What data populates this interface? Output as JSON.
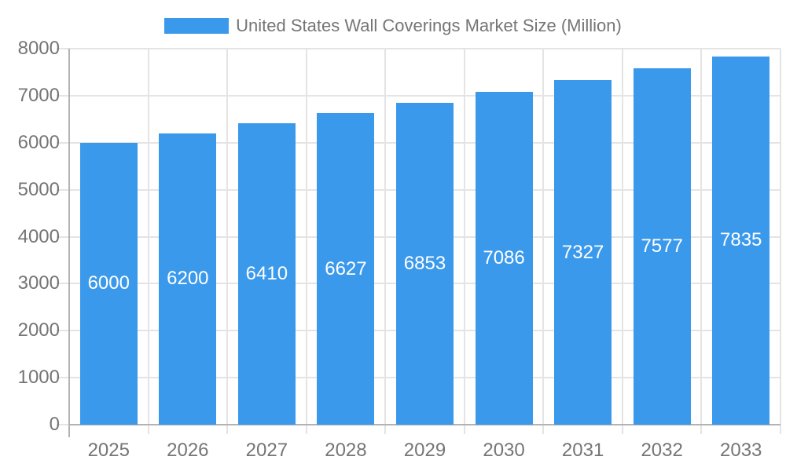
{
  "chart_data": {
    "type": "bar",
    "title": "United States Wall Coverings Market Size (Million)",
    "categories": [
      "2025",
      "2026",
      "2027",
      "2028",
      "2029",
      "2030",
      "2031",
      "2032",
      "2033"
    ],
    "values": [
      6000,
      6200,
      6410,
      6627,
      6853,
      7086,
      7327,
      7577,
      7835
    ],
    "series": [
      {
        "name": "United States Wall Coverings Market Size (Million)",
        "values": [
          6000,
          6200,
          6410,
          6627,
          6853,
          7086,
          7327,
          7577,
          7835
        ]
      }
    ],
    "xlabel": "",
    "ylabel": "",
    "ylim": [
      0,
      8000
    ],
    "yticks": [
      0,
      1000,
      2000,
      3000,
      4000,
      5000,
      6000,
      7000,
      8000
    ],
    "grid": true,
    "legend_position": "top-center",
    "value_labels": "inside-center",
    "colors": {
      "bar": "#3B99EC",
      "value_label": "#FFFFFF",
      "axis_text": "#757575",
      "gridline": "#E4E4E4",
      "axis_line": "#B3B3B3",
      "background": "#FFFFFF"
    }
  }
}
